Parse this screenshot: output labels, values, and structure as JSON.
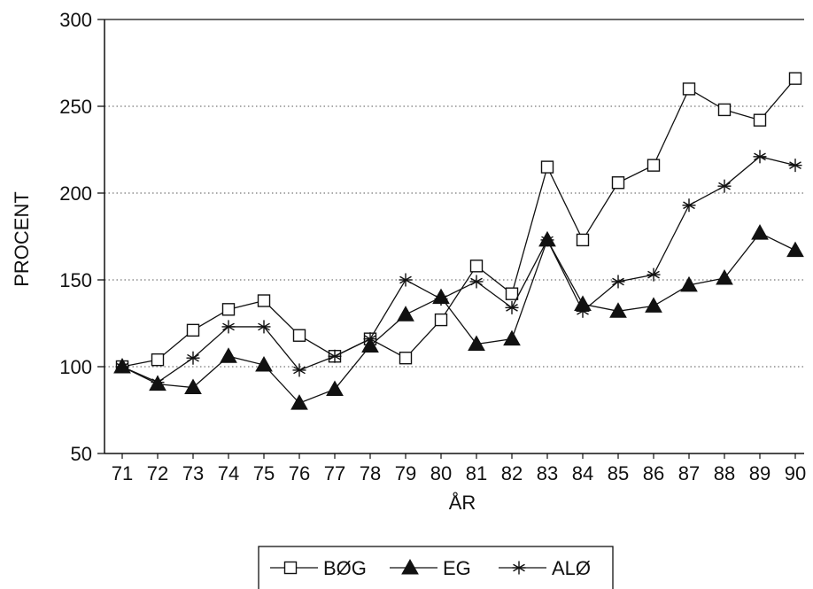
{
  "chart_data": {
    "type": "line",
    "title": "",
    "xlabel": "ÅR",
    "ylabel": "PROCENT",
    "categories": [
      "71",
      "72",
      "73",
      "74",
      "75",
      "76",
      "77",
      "78",
      "79",
      "80",
      "81",
      "82",
      "83",
      "84",
      "85",
      "86",
      "87",
      "88",
      "89",
      "90"
    ],
    "ylim": [
      50,
      300
    ],
    "yticks": [
      50,
      100,
      150,
      200,
      250,
      300
    ],
    "grid": "horizontal dotted",
    "legend_position": "bottom",
    "series": [
      {
        "name": "BØG",
        "marker": "open-square",
        "color": "#111111",
        "values": [
          100,
          104,
          121,
          133,
          138,
          118,
          106,
          116,
          105,
          127,
          158,
          142,
          215,
          173,
          206,
          216,
          260,
          248,
          242,
          266
        ]
      },
      {
        "name": "EG",
        "marker": "filled-triangle",
        "color": "#111111",
        "values": [
          100,
          90,
          88,
          106,
          101,
          79,
          87,
          112,
          130,
          140,
          113,
          116,
          173,
          136,
          132,
          135,
          147,
          151,
          177,
          167
        ]
      },
      {
        "name": "ALØ",
        "marker": "asterisk",
        "color": "#111111",
        "values": [
          100,
          91,
          105,
          123,
          123,
          98,
          106,
          116,
          150,
          139,
          149,
          134,
          173,
          132,
          149,
          153,
          193,
          204,
          221,
          216
        ]
      }
    ]
  }
}
